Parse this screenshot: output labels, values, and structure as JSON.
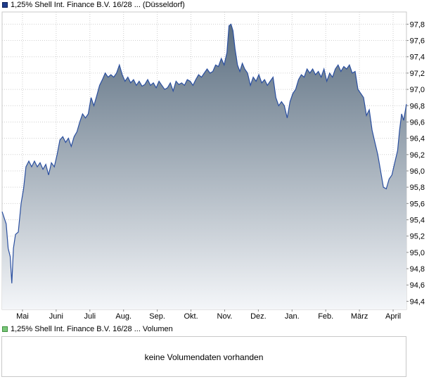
{
  "legend": {
    "price": "1,25% Shell Int. Finance B.V. 16/28 ... (Düsseldorf)",
    "volume": "1,25% Shell Int. Finance B.V. 16/28 ... Volumen"
  },
  "volume_panel": {
    "message": "keine Volumendaten vorhanden"
  },
  "colors": {
    "line": "#2a4fa0",
    "fill_top": "#5b6e80",
    "fill_bottom": "#f4f6f9",
    "grid": "#cfcfcf",
    "volume_swatch": "#79c779"
  },
  "chart_data": {
    "type": "area",
    "series": [
      {
        "name": "1,25% Shell Int. Finance B.V. 16/28 ... (Düsseldorf)"
      }
    ],
    "x_ticks": [
      "Mai",
      "Juni",
      "Juli",
      "Aug.",
      "Sep.",
      "Okt.",
      "Nov.",
      "Dez.",
      "Jan.",
      "Feb.",
      "März",
      "April"
    ],
    "y_ticks": [
      "94,4",
      "94,6",
      "94,8",
      "95,0",
      "95,2",
      "95,4",
      "95,6",
      "95,8",
      "96,0",
      "96,2",
      "96,4",
      "96,6",
      "96,8",
      "97,0",
      "97,2",
      "97,4",
      "97,6",
      "97,8"
    ],
    "ylim": [
      94.3,
      97.95
    ],
    "x_range": [
      0,
      100
    ],
    "grid": true,
    "points": [
      [
        0,
        95.5
      ],
      [
        1,
        95.35
      ],
      [
        1.5,
        95.05
      ],
      [
        2,
        94.95
      ],
      [
        2.4,
        94.62
      ],
      [
        2.8,
        95.05
      ],
      [
        3.3,
        95.22
      ],
      [
        4,
        95.25
      ],
      [
        4.7,
        95.6
      ],
      [
        5.3,
        95.78
      ],
      [
        5.9,
        96.05
      ],
      [
        6.6,
        96.12
      ],
      [
        7.3,
        96.05
      ],
      [
        8,
        96.12
      ],
      [
        8.7,
        96.05
      ],
      [
        9.4,
        96.1
      ],
      [
        10.1,
        96.02
      ],
      [
        10.8,
        96.08
      ],
      [
        11.5,
        95.95
      ],
      [
        12.2,
        96.1
      ],
      [
        12.9,
        96.05
      ],
      [
        13.6,
        96.2
      ],
      [
        14.3,
        96.38
      ],
      [
        15,
        96.42
      ],
      [
        15.7,
        96.35
      ],
      [
        16.4,
        96.4
      ],
      [
        17.1,
        96.3
      ],
      [
        17.8,
        96.42
      ],
      [
        18.5,
        96.48
      ],
      [
        19.2,
        96.6
      ],
      [
        19.9,
        96.7
      ],
      [
        20.6,
        96.65
      ],
      [
        21.3,
        96.7
      ],
      [
        22,
        96.9
      ],
      [
        22.7,
        96.8
      ],
      [
        23.4,
        96.92
      ],
      [
        24.1,
        97.05
      ],
      [
        24.8,
        97.12
      ],
      [
        25.5,
        97.2
      ],
      [
        26.2,
        97.15
      ],
      [
        26.9,
        97.18
      ],
      [
        27.6,
        97.15
      ],
      [
        28.3,
        97.2
      ],
      [
        29,
        97.3
      ],
      [
        29.7,
        97.18
      ],
      [
        30.4,
        97.1
      ],
      [
        31.1,
        97.15
      ],
      [
        31.8,
        97.08
      ],
      [
        32.5,
        97.12
      ],
      [
        33.2,
        97.05
      ],
      [
        33.9,
        97.1
      ],
      [
        34.6,
        97.04
      ],
      [
        35.3,
        97.06
      ],
      [
        36,
        97.12
      ],
      [
        36.7,
        97.05
      ],
      [
        37.4,
        97.08
      ],
      [
        38.1,
        97.02
      ],
      [
        38.8,
        97.1
      ],
      [
        39.5,
        97.05
      ],
      [
        40.2,
        97.0
      ],
      [
        40.9,
        97.02
      ],
      [
        41.6,
        97.08
      ],
      [
        42.3,
        96.98
      ],
      [
        43,
        97.1
      ],
      [
        43.7,
        97.06
      ],
      [
        44.4,
        97.08
      ],
      [
        45.1,
        97.05
      ],
      [
        45.8,
        97.12
      ],
      [
        46.5,
        97.1
      ],
      [
        47.2,
        97.05
      ],
      [
        47.9,
        97.12
      ],
      [
        48.6,
        97.18
      ],
      [
        49.3,
        97.15
      ],
      [
        50,
        97.2
      ],
      [
        50.7,
        97.25
      ],
      [
        51.4,
        97.2
      ],
      [
        52.1,
        97.22
      ],
      [
        52.8,
        97.3
      ],
      [
        53.5,
        97.28
      ],
      [
        54.2,
        97.38
      ],
      [
        54.9,
        97.3
      ],
      [
        55.6,
        97.45
      ],
      [
        56.1,
        97.78
      ],
      [
        56.6,
        97.8
      ],
      [
        57.1,
        97.72
      ],
      [
        57.6,
        97.5
      ],
      [
        58.2,
        97.3
      ],
      [
        58.8,
        97.22
      ],
      [
        59.4,
        97.32
      ],
      [
        60,
        97.25
      ],
      [
        60.7,
        97.2
      ],
      [
        61.4,
        97.05
      ],
      [
        62.1,
        97.15
      ],
      [
        62.8,
        97.1
      ],
      [
        63.5,
        97.18
      ],
      [
        64.2,
        97.08
      ],
      [
        64.9,
        97.12
      ],
      [
        65.6,
        97.05
      ],
      [
        66.3,
        97.1
      ],
      [
        67,
        97.15
      ],
      [
        67.7,
        96.9
      ],
      [
        68.4,
        96.8
      ],
      [
        69.1,
        96.85
      ],
      [
        69.8,
        96.8
      ],
      [
        70.5,
        96.65
      ],
      [
        71.2,
        96.85
      ],
      [
        71.9,
        96.95
      ],
      [
        72.6,
        97.0
      ],
      [
        73.3,
        97.12
      ],
      [
        74,
        97.18
      ],
      [
        74.7,
        97.15
      ],
      [
        75.4,
        97.25
      ],
      [
        76.1,
        97.2
      ],
      [
        76.8,
        97.25
      ],
      [
        77.5,
        97.18
      ],
      [
        78.2,
        97.22
      ],
      [
        78.9,
        97.15
      ],
      [
        79.6,
        97.25
      ],
      [
        80.3,
        97.1
      ],
      [
        81,
        97.2
      ],
      [
        81.7,
        97.15
      ],
      [
        82.4,
        97.25
      ],
      [
        83.1,
        97.3
      ],
      [
        83.8,
        97.22
      ],
      [
        84.5,
        97.28
      ],
      [
        85.2,
        97.25
      ],
      [
        85.9,
        97.3
      ],
      [
        86.6,
        97.2
      ],
      [
        87.3,
        97.22
      ],
      [
        88,
        97.0
      ],
      [
        88.7,
        96.95
      ],
      [
        89.4,
        96.9
      ],
      [
        90.1,
        96.68
      ],
      [
        90.8,
        96.75
      ],
      [
        91.5,
        96.5
      ],
      [
        92.2,
        96.35
      ],
      [
        92.9,
        96.2
      ],
      [
        93.6,
        96.0
      ],
      [
        94.3,
        95.8
      ],
      [
        95,
        95.78
      ],
      [
        95.7,
        95.9
      ],
      [
        96.4,
        95.95
      ],
      [
        97.1,
        96.1
      ],
      [
        97.8,
        96.25
      ],
      [
        98.3,
        96.5
      ],
      [
        98.8,
        96.7
      ],
      [
        99.3,
        96.62
      ],
      [
        100,
        96.82
      ]
    ]
  }
}
